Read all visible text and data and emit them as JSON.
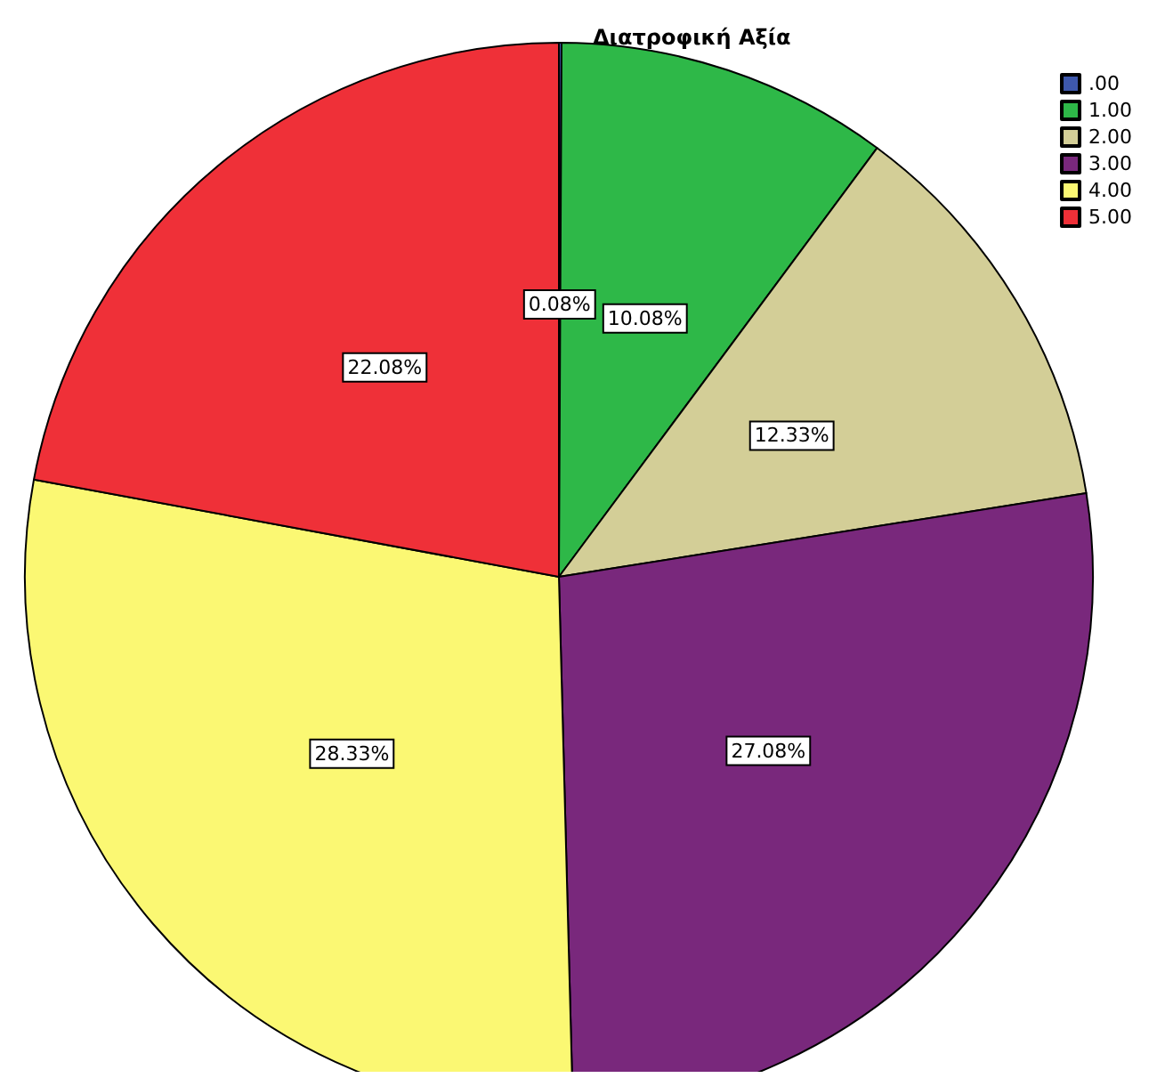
{
  "chart_data": {
    "type": "pie",
    "title": "Διατροφική Αξία",
    "categories": [
      ".00",
      "1.00",
      "2.00",
      "3.00",
      "4.00",
      "5.00"
    ],
    "values": [
      0.08,
      10.08,
      12.33,
      27.08,
      28.33,
      22.08
    ],
    "value_labels": [
      "0.08%",
      "10.08%",
      "12.33%",
      "27.08%",
      "28.33%",
      "22.08%"
    ],
    "colors": [
      "#3e58ac",
      "#2eb848",
      "#d3ce97",
      "#79287c",
      "#fbf873",
      "#ef3038"
    ],
    "legend": "top right"
  }
}
